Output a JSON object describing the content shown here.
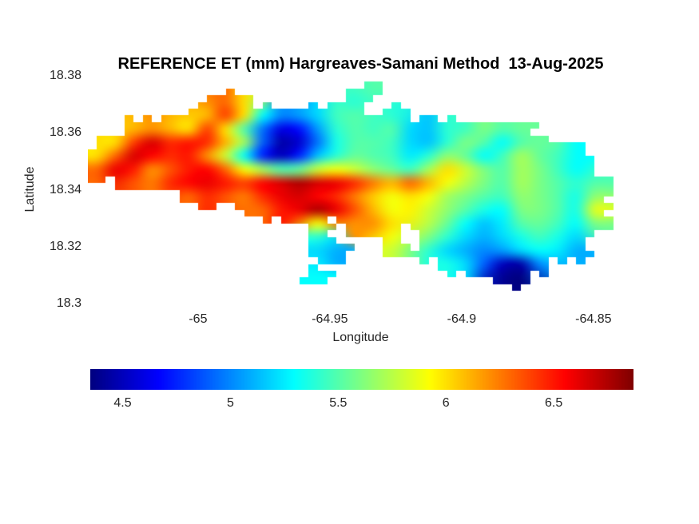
{
  "figure": {
    "title": "REFERENCE ET (mm) Hargreaves-Samani Method  13-Aug-2025",
    "xlabel": "Longitude",
    "ylabel": "Latitude"
  },
  "chart_data": {
    "type": "heatmap",
    "title": "REFERENCE ET (mm) Hargreaves-Samani Method  13-Aug-2025",
    "xlabel": "Longitude",
    "ylabel": "Latitude",
    "xlim": [
      -65.0418,
      -64.8348
    ],
    "ylim": [
      18.3,
      18.38
    ],
    "x_ticks": [
      -65,
      -64.95,
      -64.9,
      -64.85
    ],
    "x_tick_labels": [
      "-65",
      "-64.95",
      "-64.9",
      "-64.85"
    ],
    "y_ticks": [
      18.38,
      18.36,
      18.34,
      18.32,
      18.3
    ],
    "y_tick_labels": [
      "18.38",
      "18.36",
      "18.34",
      "18.32",
      "18.3"
    ],
    "colormap": "jet",
    "legend_position": "none",
    "grid_lines": false,
    "colorbar": {
      "orientation": "horizontal",
      "vmin": 4.35,
      "vmax": 6.87,
      "ticks": [
        4.5,
        5,
        5.5,
        6,
        6.5
      ],
      "tick_labels": [
        "4.5",
        "5",
        "5.5",
        "6",
        "6.5"
      ]
    },
    "grid": {
      "comment_values": "Reference ET (mm), rows north to south; null = ocean / no data",
      "lon_min": -65.042,
      "lon_max": -64.832,
      "lat_min": 18.302,
      "lat_max": 18.378,
      "ncols": 30,
      "nrows": 16,
      "values": [
        [
          null,
          null,
          null,
          null,
          null,
          null,
          null,
          null,
          null,
          null,
          null,
          null,
          null,
          null,
          null,
          5.5,
          null,
          null,
          null,
          null,
          null,
          null,
          null,
          null,
          null,
          null,
          null,
          null,
          null,
          null
        ],
        [
          null,
          null,
          null,
          null,
          null,
          null,
          null,
          6.3,
          6.0,
          null,
          null,
          null,
          null,
          null,
          5.4,
          null,
          null,
          null,
          null,
          null,
          null,
          null,
          null,
          null,
          null,
          null,
          null,
          null,
          null,
          null
        ],
        [
          null,
          null,
          null,
          null,
          null,
          null,
          6.1,
          6.4,
          6.0,
          5.3,
          5.0,
          5.05,
          5.2,
          5.45,
          5.5,
          null,
          5.4,
          null,
          null,
          null,
          null,
          null,
          null,
          null,
          null,
          null,
          null,
          null,
          null,
          null
        ],
        [
          null,
          null,
          6.1,
          6.2,
          6.1,
          6.0,
          6.4,
          6.0,
          5.5,
          4.95,
          4.6,
          4.7,
          5.05,
          5.4,
          5.5,
          5.45,
          5.5,
          5.2,
          5.15,
          5.4,
          5.45,
          5.6,
          5.5,
          5.55,
          null,
          null,
          null,
          null,
          null,
          null
        ],
        [
          null,
          6.0,
          6.4,
          6.65,
          6.45,
          6.5,
          6.45,
          6.1,
          5.7,
          4.9,
          4.45,
          4.55,
          4.95,
          5.35,
          5.5,
          5.5,
          5.45,
          5.2,
          5.15,
          5.4,
          5.6,
          5.5,
          5.3,
          5.5,
          5.55,
          null,
          null,
          null,
          null,
          null
        ],
        [
          6.0,
          6.3,
          6.65,
          6.55,
          6.45,
          6.5,
          6.2,
          5.8,
          5.3,
          4.75,
          4.5,
          4.75,
          5.15,
          5.4,
          5.55,
          5.5,
          5.45,
          5.25,
          5.4,
          5.65,
          5.55,
          5.3,
          5.45,
          5.7,
          5.55,
          5.45,
          5.3,
          null,
          null,
          null
        ],
        [
          6.3,
          6.6,
          6.5,
          6.2,
          6.35,
          6.5,
          6.55,
          6.3,
          5.9,
          5.7,
          5.5,
          5.55,
          5.8,
          5.9,
          5.8,
          5.65,
          5.55,
          5.45,
          5.7,
          6.0,
          5.8,
          5.6,
          5.5,
          5.7,
          5.6,
          5.45,
          5.3,
          null,
          null,
          null
        ],
        [
          null,
          null,
          6.35,
          6.25,
          6.45,
          6.55,
          6.6,
          6.5,
          6.4,
          6.55,
          6.65,
          6.75,
          6.65,
          6.6,
          6.45,
          6.25,
          6.1,
          6.3,
          6.1,
          5.9,
          5.75,
          5.6,
          5.5,
          5.7,
          5.6,
          5.5,
          5.4,
          5.5,
          null,
          null
        ],
        [
          null,
          null,
          null,
          null,
          null,
          6.3,
          6.45,
          6.35,
          6.25,
          6.45,
          6.6,
          6.65,
          6.55,
          6.45,
          6.25,
          6.05,
          5.9,
          6.0,
          5.9,
          5.7,
          5.6,
          5.5,
          5.45,
          5.65,
          5.6,
          5.5,
          5.35,
          5.65,
          null,
          null
        ],
        [
          null,
          null,
          null,
          null,
          null,
          null,
          null,
          null,
          null,
          6.3,
          6.5,
          6.6,
          6.75,
          6.6,
          6.35,
          6.1,
          5.9,
          5.95,
          5.8,
          5.65,
          5.5,
          5.35,
          5.3,
          5.6,
          5.6,
          5.5,
          5.35,
          5.85,
          null,
          null
        ],
        [
          null,
          null,
          null,
          null,
          null,
          null,
          null,
          null,
          null,
          null,
          null,
          null,
          5.9,
          null,
          6.2,
          6.2,
          6.0,
          null,
          5.75,
          5.55,
          5.3,
          5.15,
          5.25,
          5.5,
          5.55,
          5.45,
          5.3,
          5.6,
          null,
          null
        ],
        [
          null,
          null,
          null,
          null,
          null,
          null,
          null,
          null,
          null,
          null,
          null,
          null,
          5.4,
          null,
          null,
          null,
          5.9,
          null,
          5.6,
          5.4,
          5.2,
          5.1,
          5.2,
          5.35,
          5.45,
          5.35,
          5.2,
          null,
          null,
          null
        ],
        [
          null,
          null,
          null,
          null,
          null,
          null,
          null,
          null,
          null,
          null,
          null,
          null,
          5.2,
          5.1,
          null,
          null,
          5.8,
          null,
          5.4,
          5.2,
          5.1,
          5.0,
          5.05,
          5.2,
          5.3,
          5.25,
          5.1,
          null,
          null,
          null
        ],
        [
          null,
          null,
          null,
          null,
          null,
          null,
          null,
          null,
          null,
          null,
          null,
          null,
          null,
          null,
          null,
          null,
          null,
          null,
          null,
          5.35,
          5.2,
          4.9,
          4.5,
          4.45,
          5.0,
          null,
          null,
          null,
          null,
          null
        ],
        [
          null,
          null,
          null,
          null,
          null,
          null,
          null,
          null,
          null,
          null,
          null,
          null,
          5.3,
          null,
          null,
          null,
          null,
          null,
          null,
          null,
          null,
          null,
          4.4,
          4.35,
          null,
          null,
          null,
          null,
          null,
          null
        ],
        [
          null,
          null,
          null,
          null,
          null,
          null,
          null,
          null,
          null,
          null,
          null,
          null,
          null,
          null,
          null,
          null,
          null,
          null,
          null,
          null,
          null,
          null,
          null,
          null,
          null,
          null,
          null,
          null,
          null,
          null
        ]
      ]
    }
  }
}
